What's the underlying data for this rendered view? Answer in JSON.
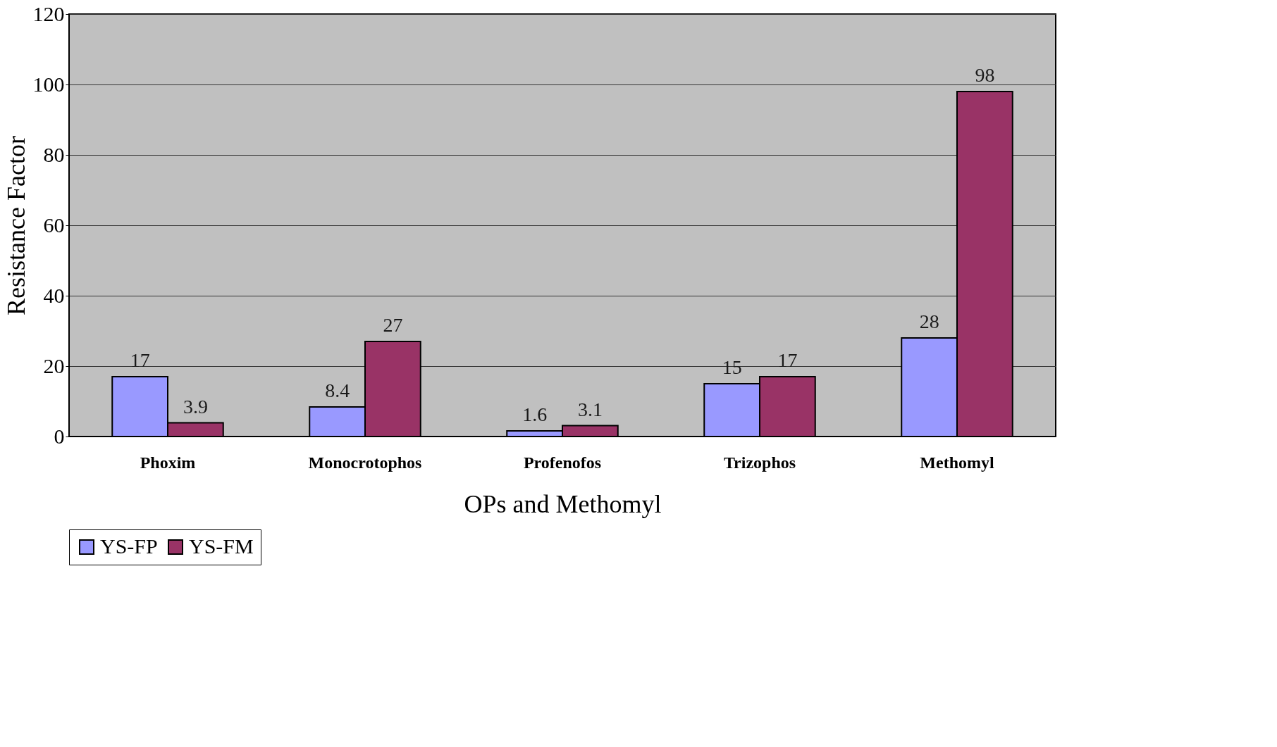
{
  "chart_data": {
    "type": "bar",
    "xlabel": "OPs and Methomyl",
    "ylabel": "Resistance Factor",
    "categories": [
      "Phoxim",
      "Monocrotophos",
      "Profenofos",
      "Trizophos",
      "Methomyl"
    ],
    "series": [
      {
        "name": "YS-FP",
        "color": "#9999ff",
        "values": [
          17,
          8.4,
          1.6,
          15,
          28
        ]
      },
      {
        "name": "YS-FM",
        "color": "#993366",
        "values": [
          3.9,
          27,
          3.1,
          17,
          98
        ]
      }
    ],
    "ylim": [
      0,
      120
    ],
    "yticks": [
      0,
      20,
      40,
      60,
      80,
      100,
      120
    ],
    "grid": "y",
    "legend": "bottom",
    "data_labels": true
  }
}
